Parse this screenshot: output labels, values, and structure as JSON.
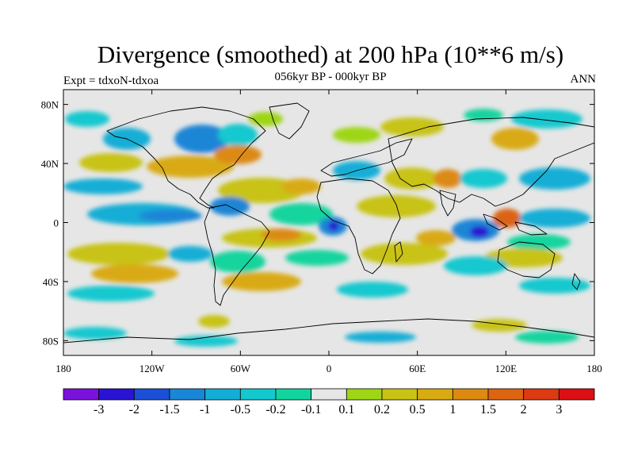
{
  "header": {
    "title": "Divergence (smoothed) at 200 hPa (10**6 m/s)",
    "subtitle": "056kyr BP - 000kyr BP",
    "left_label": "Expt = tdxoN-tdxoa",
    "right_label": "ANN"
  },
  "axes": {
    "lat_ticks": [
      {
        "label": "80N",
        "value": 80
      },
      {
        "label": "40N",
        "value": 40
      },
      {
        "label": "0",
        "value": 0
      },
      {
        "label": "40S",
        "value": -40
      },
      {
        "label": "80S",
        "value": -80
      }
    ],
    "lon_ticks": [
      {
        "label": "180",
        "value": -180
      },
      {
        "label": "120W",
        "value": -120
      },
      {
        "label": "60W",
        "value": -60
      },
      {
        "label": "0",
        "value": 0
      },
      {
        "label": "60E",
        "value": 60
      },
      {
        "label": "120E",
        "value": 120
      },
      {
        "label": "180",
        "value": 180
      }
    ],
    "lon_range": [
      -180,
      180
    ],
    "lat_range": [
      -90,
      90
    ]
  },
  "colorbar": {
    "labels": [
      "-3",
      "-2",
      "-1.5",
      "-1",
      "-0.5",
      "-0.2",
      "-0.1",
      "0.1",
      "0.2",
      "0.5",
      "1",
      "1.5",
      "2",
      "3"
    ],
    "colors": [
      "#7a12dc",
      "#2a13d2",
      "#1b4fd6",
      "#1a86d6",
      "#13aed6",
      "#14c8cf",
      "#12d49e",
      "#e6e6e6",
      "#9ed615",
      "#c8c314",
      "#d9aa12",
      "#dc8a12",
      "#dc6412",
      "#dc3a12",
      "#dc0f12"
    ]
  },
  "colors": {
    "neutral": "#e6e6e6",
    "coastline": "#000000"
  }
}
